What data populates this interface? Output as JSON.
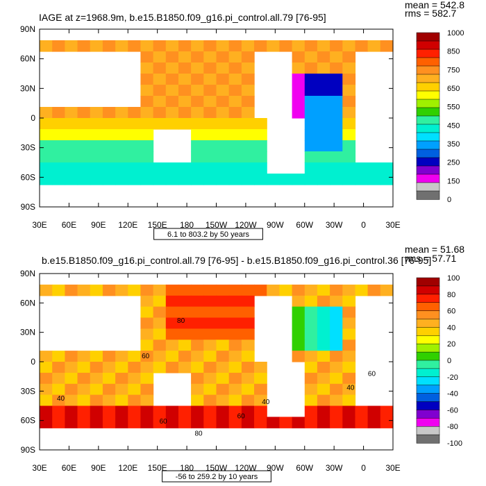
{
  "chart_data": [
    {
      "type": "heatmap",
      "title": "IAGE at z=1968.9m, b.e15.B1850.f09_g16.pi_control.all.79 [76-95]",
      "stats": [
        "mean = 542.8",
        "rms = 582.7"
      ],
      "x_ticks": [
        "30E",
        "60E",
        "90E",
        "120E",
        "150E",
        "180",
        "150W",
        "120W",
        "90W",
        "60W",
        "30W",
        "0",
        "30E"
      ],
      "y_ticks": [
        "90N",
        "60N",
        "30N",
        "0",
        "30S",
        "60S",
        "90S"
      ],
      "contour_info": "6.1 to 803.2 by 50 years",
      "colorbar": {
        "labels": [
          "1000",
          "850",
          "750",
          "650",
          "550",
          "450",
          "350",
          "250",
          "150",
          "0"
        ],
        "colors": [
          "#A00000",
          "#D00000",
          "#FF2000",
          "#FF6000",
          "#FF9020",
          "#FFB020",
          "#FFD000",
          "#FFFF00",
          "#A0F000",
          "#30D000",
          "#30F0A0",
          "#00F0D0",
          "#00E0FF",
          "#00A0FF",
          "#0060E0",
          "#0000C0",
          "#8000D0",
          "#F000F0",
          "#C8C8C8",
          "#707070"
        ]
      }
    },
    {
      "type": "heatmap",
      "title": "b.e15.B1850.f09_g16.pi_control.all.79 [76-95] - b.e15.B1850.f09_g16.pi_control.36 [76-95]",
      "stats": [
        "mean = 51.68",
        "rms = 57.71"
      ],
      "x_ticks": [
        "30E",
        "60E",
        "90E",
        "120E",
        "150E",
        "180",
        "150W",
        "120W",
        "90W",
        "60W",
        "30W",
        "0",
        "30E"
      ],
      "y_ticks": [
        "90N",
        "60N",
        "30N",
        "0",
        "30S",
        "60S",
        "90S"
      ],
      "contour_info": "-56 to 259.2 by 10 years",
      "contour_labels": [
        "80",
        "60",
        "40",
        "40",
        "60",
        "60",
        "80",
        "60",
        "40"
      ],
      "colorbar": {
        "labels": [
          "100",
          "80",
          "60",
          "40",
          "20",
          "0",
          "-20",
          "-40",
          "-60",
          "-80",
          "-100"
        ],
        "colors": [
          "#A00000",
          "#D00000",
          "#FF2000",
          "#FF6000",
          "#FF9020",
          "#FFB020",
          "#FFD000",
          "#FFFF00",
          "#A0F000",
          "#30D000",
          "#30F0A0",
          "#00F0D0",
          "#00E0FF",
          "#00A0FF",
          "#0060E0",
          "#0000C0",
          "#8000D0",
          "#F000F0",
          "#C8C8C8",
          "#707070"
        ]
      }
    }
  ]
}
